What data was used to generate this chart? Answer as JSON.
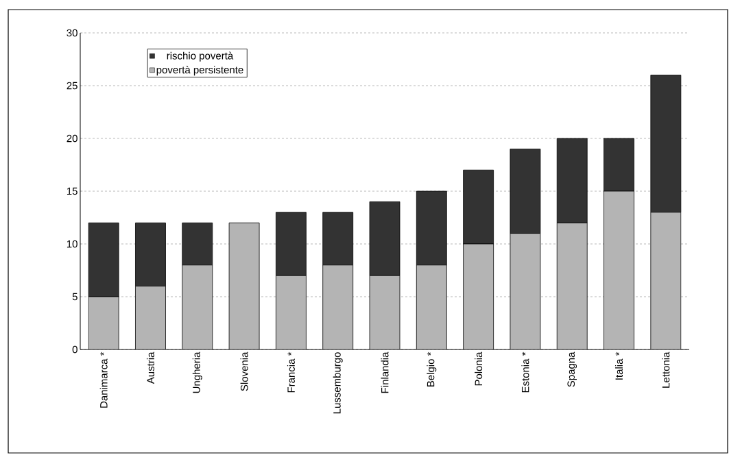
{
  "chart_data": {
    "type": "bar",
    "stacked": true,
    "categories": [
      "Danimarca *",
      "Austria",
      "Ungheria",
      "Slovenia",
      "Francia *",
      "Lussemburgo",
      "Finlandia",
      "Belgio *",
      "Polonia",
      "Estonia *",
      "Spagna",
      "Italia *",
      "Lettonia"
    ],
    "series": [
      {
        "name": "povertà persistente",
        "color": "#b4b4b4",
        "values": [
          5,
          6,
          8,
          12,
          7,
          8,
          7,
          8,
          10,
          11,
          12,
          15,
          13
        ]
      },
      {
        "name": "rischio povertà",
        "color": "#333333",
        "values": [
          7,
          6,
          4,
          0,
          6,
          5,
          7,
          7,
          7,
          8,
          8,
          5,
          13
        ]
      }
    ],
    "ylim": [
      0,
      30
    ],
    "yticks": [
      0,
      5,
      10,
      15,
      20,
      25,
      30
    ],
    "grid": "y",
    "legend": "top left"
  }
}
